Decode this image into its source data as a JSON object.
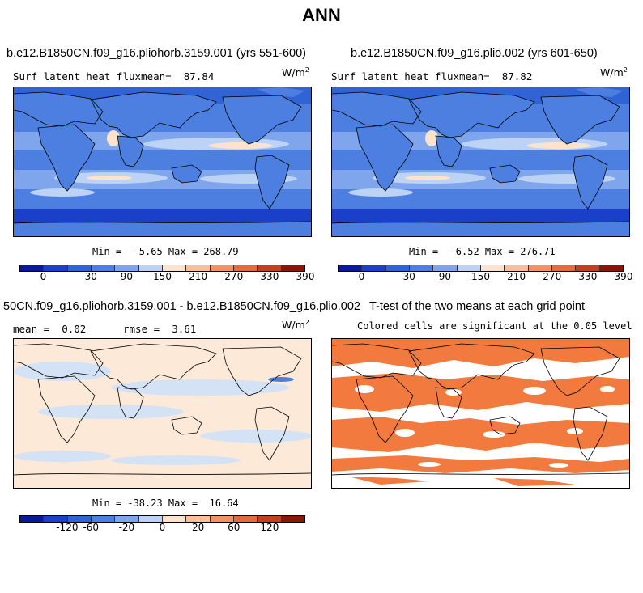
{
  "figure_title": "ANN",
  "colors": {
    "levels12": [
      "#081a9a",
      "#1a3fc8",
      "#2f63d6",
      "#4d7fe0",
      "#7fa6ec",
      "#bcd3f6",
      "#fde3cc",
      "#f8bf99",
      "#f29367",
      "#e46a3d",
      "#c2401f",
      "#8a1608"
    ],
    "diff_ocean": "#fde9d8",
    "diff_blue": "#d4e2f6",
    "sig": "#f27a3f"
  },
  "panels": {
    "p1": {
      "title": "b.e12.B1850CN.f09_g16.pliohorb.3159.001 (yrs 551-600)",
      "label": "Surf latent heat fluxmean=  87.84",
      "units": "W/m",
      "units_sup": "2",
      "stats": "Min =  -5.65 Max = 268.79",
      "ticks": [
        "0",
        "30",
        "90",
        "150",
        "210",
        "270",
        "330",
        "390"
      ]
    },
    "p2": {
      "title": "b.e12.B1850CN.f09_g16.plio.002 (yrs 601-650)",
      "label": "Surf latent heat fluxmean=  87.82",
      "units": "W/m",
      "units_sup": "2",
      "stats": "Min =  -6.52 Max = 276.71",
      "ticks": [
        "0",
        "30",
        "90",
        "150",
        "210",
        "270",
        "330",
        "390"
      ]
    },
    "p3": {
      "title": "50CN.f09_g16.pliohorb.3159.001 - b.e12.B1850CN.f09_g16.plio.002",
      "label_mean": "mean =  0.02",
      "label_rmse": "rmse =  3.61",
      "units": "W/m",
      "units_sup": "2",
      "stats": "Min = -38.23 Max =  16.64",
      "ticks": [
        "-120",
        "-60",
        "-20",
        "0",
        "20",
        "60",
        "120"
      ]
    },
    "p4": {
      "title": "T-test of the two means at each grid point",
      "subtitle": "Colored cells are significant at the 0.05 level"
    }
  },
  "chart_data": [
    {
      "type": "heatmap",
      "title": "b.e12.B1850CN.f09_g16.pliohorb.3159.001 (yrs 551-600)",
      "variable": "Surf latent heat flux",
      "mean": 87.84,
      "min": -5.65,
      "max": 268.79,
      "units": "W/m2",
      "colorbar_ticks": [
        0,
        30,
        90,
        150,
        210,
        270,
        330,
        390
      ]
    },
    {
      "type": "heatmap",
      "title": "b.e12.B1850CN.f09_g16.plio.002 (yrs 601-650)",
      "variable": "Surf latent heat flux",
      "mean": 87.82,
      "min": -6.52,
      "max": 276.71,
      "units": "W/m2",
      "colorbar_ticks": [
        0,
        30,
        90,
        150,
        210,
        270,
        330,
        390
      ]
    },
    {
      "type": "heatmap",
      "title": "50CN.f09_g16.pliohorb.3159.001 - b.e12.B1850CN.f09_g16.plio.002",
      "mean": 0.02,
      "rmse": 3.61,
      "min": -38.23,
      "max": 16.64,
      "units": "W/m2",
      "colorbar_ticks": [
        -120,
        -60,
        -20,
        0,
        20,
        60,
        120
      ]
    },
    {
      "type": "heatmap",
      "title": "T-test of the two means at each grid point",
      "subtitle": "Colored cells are significant at the 0.05 level"
    }
  ]
}
